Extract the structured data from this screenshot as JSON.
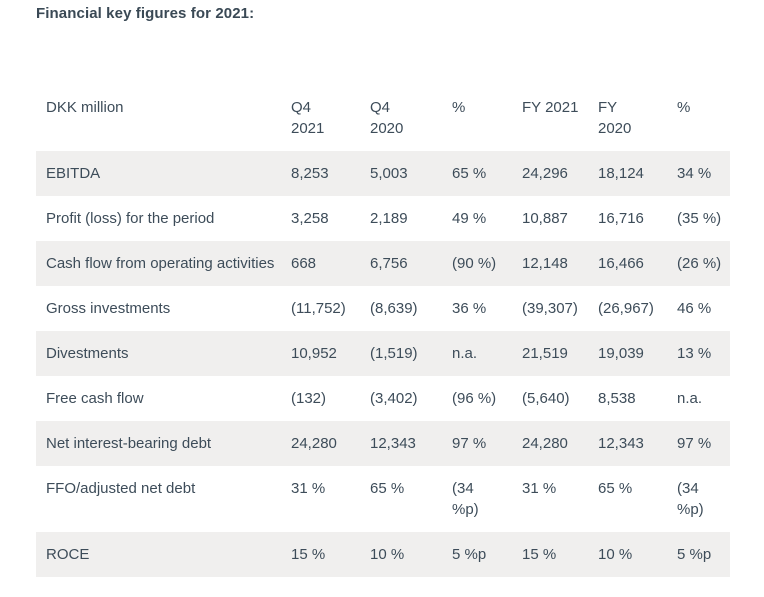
{
  "page": {
    "title": "Financial key figures for 2021:"
  },
  "colors": {
    "text": "#3d4c59",
    "title_text": "#3a4955",
    "row_stripe": "#f0efee",
    "background": "#ffffff"
  },
  "table": {
    "unit_header": "DKK million",
    "columns": [
      "Q4\n2021",
      "Q4\n2020",
      "%",
      "FY 2021",
      "FY\n2020",
      "%"
    ],
    "rows": [
      {
        "label": "EBITDA",
        "values": [
          "8,253",
          "5,003",
          "65 %",
          "24,296",
          "18,124",
          "34 %"
        ]
      },
      {
        "label": "Profit (loss) for the period",
        "values": [
          "3,258",
          "2,189",
          "49 %",
          "10,887",
          "16,716",
          "(35 %)"
        ]
      },
      {
        "label": "Cash flow from operating activities",
        "values": [
          "668",
          "6,756",
          "(90 %)",
          "12,148",
          "16,466",
          "(26 %)"
        ]
      },
      {
        "label": "Gross investments",
        "values": [
          "(11,752)",
          "(8,639)",
          "36 %",
          "(39,307)",
          "(26,967)",
          "46 %"
        ]
      },
      {
        "label": "Divestments",
        "values": [
          "10,952",
          "(1,519)",
          "n.a.",
          "21,519",
          "19,039",
          "13 %"
        ]
      },
      {
        "label": "Free cash flow",
        "values": [
          "(132)",
          "(3,402)",
          "(96 %)",
          "(5,640)",
          "8,538",
          "n.a."
        ]
      },
      {
        "label": "Net interest-bearing debt",
        "values": [
          "24,280",
          "12,343",
          "97 %",
          "24,280",
          "12,343",
          "97 %"
        ]
      },
      {
        "label": "FFO/adjusted net debt",
        "values": [
          "31 %",
          "65 %",
          "(34\n%p)",
          "31 %",
          "65 %",
          "(34\n%p)"
        ]
      },
      {
        "label": "ROCE",
        "values": [
          "15 %",
          "10 %",
          "5 %p",
          "15 %",
          "10 %",
          "5 %p"
        ]
      }
    ]
  }
}
